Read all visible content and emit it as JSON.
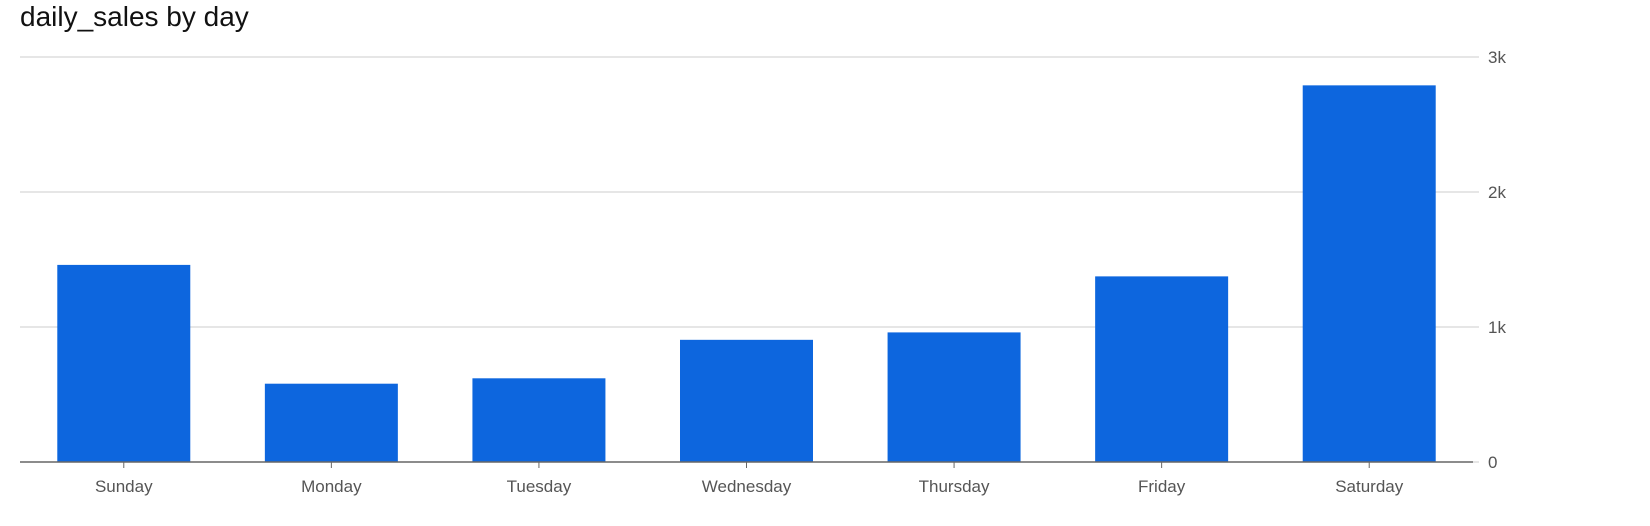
{
  "chart_data": {
    "type": "bar",
    "title": "daily_sales by day",
    "xlabel": "",
    "ylabel": "",
    "categories": [
      "Sunday",
      "Monday",
      "Tuesday",
      "Wednesday",
      "Thursday",
      "Friday",
      "Saturday"
    ],
    "values": [
      1460,
      580,
      620,
      905,
      960,
      1375,
      2790
    ],
    "ylim": [
      0,
      3000
    ],
    "y_ticks": [
      0,
      1000,
      2000,
      3000
    ],
    "y_tick_labels": [
      "0",
      "1k",
      "2k",
      "3k"
    ],
    "y_axis_side": "right",
    "grid": true,
    "legend": "none",
    "bar_color": "#0d66de",
    "grid_color": "#dddddd",
    "axis_color": "#666666"
  }
}
